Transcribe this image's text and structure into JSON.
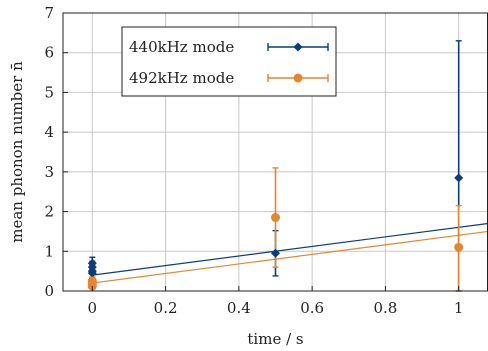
{
  "chart_data": {
    "type": "scatter",
    "xlabel": "time / s",
    "ylabel": "mean phonon number n̄",
    "xlim": [
      -0.08,
      1.08
    ],
    "ylim": [
      0,
      7
    ],
    "xticks": [
      0,
      0.2,
      0.4,
      0.6,
      0.8,
      1
    ],
    "xtick_labels": [
      "0",
      "0.2",
      "0.4",
      "0.6",
      "0.8",
      "1"
    ],
    "yticks": [
      0,
      1,
      2,
      3,
      4,
      5,
      6,
      7
    ],
    "ytick_labels": [
      "0",
      "1",
      "2",
      "3",
      "4",
      "5",
      "6",
      "7"
    ],
    "grid": true,
    "legend_position": "top-left",
    "series": [
      {
        "name": "440kHz mode",
        "color": "#0a3d7a",
        "marker": "diamond",
        "points": [
          {
            "x": 0,
            "y": 0.7,
            "lo": 0.55,
            "hi": 0.85
          },
          {
            "x": 0,
            "y": 0.6,
            "lo": 0.45,
            "hi": 0.75
          },
          {
            "x": 0,
            "y": 0.5,
            "lo": 0.35,
            "hi": 0.65
          },
          {
            "x": 0,
            "y": 0.45,
            "lo": 0.3,
            "hi": 0.6
          },
          {
            "x": 0.5,
            "y": 0.95,
            "lo": 0.38,
            "hi": 1.52
          },
          {
            "x": 1,
            "y": 2.85,
            "lo": 0.0,
            "hi": 6.3
          }
        ],
        "fit": {
          "x": [
            0,
            1.08
          ],
          "y": [
            0.4,
            1.7
          ]
        }
      },
      {
        "name": "492kHz mode",
        "color": "#e8862b",
        "marker": "circle",
        "points": [
          {
            "x": 0,
            "y": 0.25,
            "lo": 0.15,
            "hi": 0.35
          },
          {
            "x": 0,
            "y": 0.18,
            "lo": 0.1,
            "hi": 0.26
          },
          {
            "x": 0,
            "y": 0.12,
            "lo": 0.06,
            "hi": 0.2
          },
          {
            "x": 0.5,
            "y": 1.85,
            "lo": 0.6,
            "hi": 3.1
          },
          {
            "x": 1,
            "y": 1.1,
            "lo": 0.0,
            "hi": 2.15
          }
        ],
        "fit": {
          "x": [
            0,
            1.08
          ],
          "y": [
            0.2,
            1.5
          ]
        }
      }
    ]
  }
}
